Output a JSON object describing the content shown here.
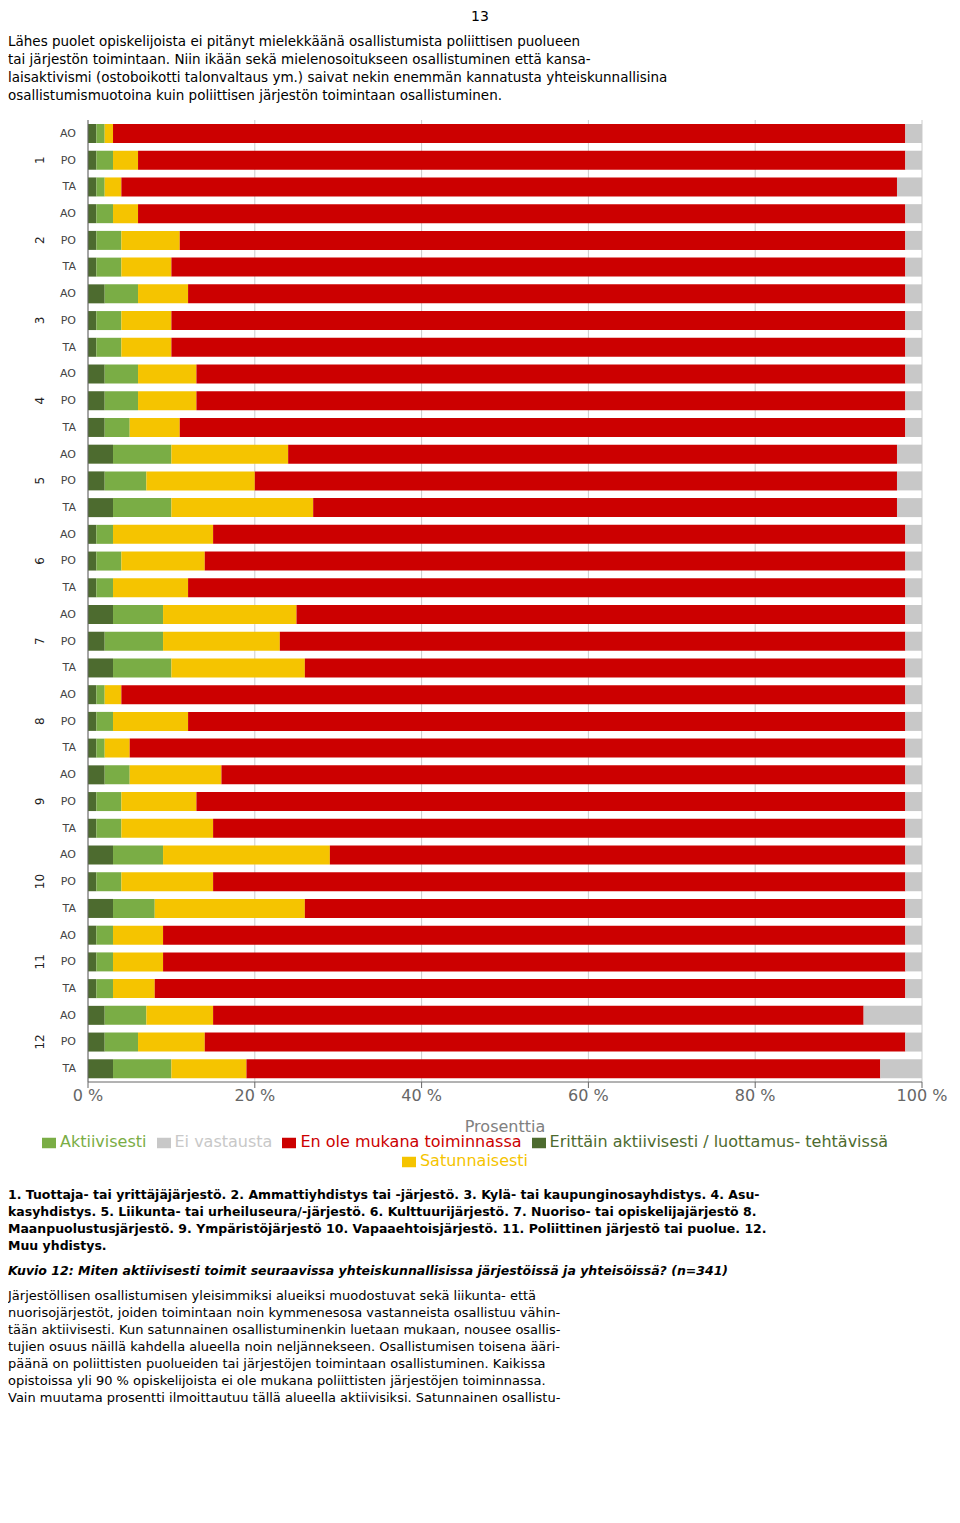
{
  "chart_data": {
    "type": "bar",
    "orientation": "horizontal",
    "stacked": true,
    "grid": true,
    "legend": "bottom",
    "title": "Kuvio 12: Miten aktiivisesti toimit seuraavissa yhteiskunnallisissa järjestöissä ja yhteisöissä? (n=341)",
    "annotations": [
      [
        "13"
      ],
      [
        "Lähes puolet opiskelijoista ei pitänyt mielekkäänä osallistumista poliittisen puolueen",
        "tai järjestön toimintaan. Niin ikään sekä mielenosoitukseen osallistuminen että kansa-",
        "laisaktivismi (ostoboikotti talonvaltaus ym.) saivat nekin enemmän kannatusta yhteiskunnallisina",
        "osallistumismuotoina kuin poliittisen järjestön toimintaan osallistuminen."
      ],
      [
        "1. Tuottaja- tai yrittäjäjärjestö. 2. Ammattiyhdistys tai -järjestö. 3. Kylä- tai kaupunginosayhdistys. 4. Asu-",
        "kasyhdistys. 5. Liikunta- tai urheiluseura/-järjestö. 6. Kulttuurijärjestö. 7. Nuoriso- tai opiskelijajärjestö 8.",
        "Maanpuolustusjärjestö. 9. Ympäristöjärjestö 10. Vapaaehtoisjärjestö. 11. Poliittinen järjestö tai puolue. 12.",
        "Muu yhdistys."
      ],
      [
        "Järjestöllisen osallistumisen yleisimmiksi alueiksi muodostuvat sekä liikunta- että",
        "nuorisojärjestöt, joiden toimintaan noin kymmenesosa vastanneista osallistuu vähin-",
        "tään aktiivisesti. Kun satunnainen osallistuminenkin luetaan mukaan, nousee osallis-",
        "tujien osuus näillä kahdella alueella noin neljännekseen. Osallistumisen toisena ääri-",
        "päänä on poliittisten puolueiden tai järjestöjen toimintaan osallistuminen. Kaikissa",
        "opistoissa yli 90 % opiskelijoista ei ole mukana poliittisten järjestöjen toiminnassa.",
        "Vain muutama prosentti ilmoittautuu tällä alueella aktiivisiksi. Satunnainen osallistu-"
      ]
    ],
    "xlabel": "Prosenttia",
    "xlim": [
      0,
      100
    ],
    "xticks": [
      {
        "value": 0,
        "label": "0 %"
      },
      {
        "value": 20,
        "label": "20 %"
      },
      {
        "value": 40,
        "label": "40 %"
      },
      {
        "value": 60,
        "label": "60 %"
      },
      {
        "value": 80,
        "label": "80 %"
      },
      {
        "value": 100,
        "label": "100 %"
      }
    ],
    "group_labels": [
      "1",
      "2",
      "3",
      "4",
      "5",
      "6",
      "7",
      "8",
      "9",
      "10",
      "11",
      "12"
    ],
    "categories": [
      "AO",
      "PO",
      "TA",
      "AO",
      "PO",
      "TA",
      "AO",
      "PO",
      "TA",
      "AO",
      "PO",
      "TA",
      "AO",
      "PO",
      "TA",
      "AO",
      "PO",
      "TA",
      "AO",
      "PO",
      "TA",
      "AO",
      "PO",
      "TA",
      "AO",
      "PO",
      "TA",
      "AO",
      "PO",
      "TA",
      "AO",
      "PO",
      "TA",
      "AO",
      "PO",
      "TA"
    ],
    "series": [
      {
        "name": "Erittäin aktiivisesti / luottamus- tehtävissä",
        "color": "#4d6b2f",
        "values": [
          1,
          1,
          1,
          1,
          1,
          1,
          2,
          1,
          1,
          2,
          2,
          2,
          3,
          2,
          3,
          1,
          1,
          1,
          3,
          2,
          3,
          1,
          1,
          1,
          2,
          1,
          1,
          3,
          1,
          3,
          1,
          1,
          1,
          2,
          2,
          3
        ]
      },
      {
        "name": "Aktiivisesti",
        "color": "#7aad45",
        "values": [
          1,
          2,
          1,
          2,
          3,
          3,
          4,
          3,
          3,
          4,
          4,
          3,
          7,
          5,
          7,
          2,
          3,
          2,
          6,
          7,
          7,
          1,
          2,
          1,
          3,
          3,
          3,
          6,
          3,
          5,
          2,
          2,
          2,
          5,
          4,
          7
        ]
      },
      {
        "name": "Satunnaisesti",
        "color": "#f5c400",
        "values": [
          1,
          3,
          2,
          3,
          7,
          6,
          6,
          6,
          6,
          7,
          7,
          6,
          14,
          13,
          17,
          12,
          10,
          9,
          16,
          14,
          16,
          2,
          9,
          3,
          11,
          9,
          11,
          20,
          11,
          18,
          6,
          6,
          5,
          8,
          8,
          9
        ]
      },
      {
        "name": "En ole mukana toiminnassa",
        "color": "#cc0000",
        "values": [
          95,
          92,
          93,
          92,
          87,
          88,
          86,
          88,
          88,
          85,
          85,
          87,
          73,
          77,
          70,
          83,
          84,
          86,
          73,
          75,
          72,
          94,
          86,
          93,
          82,
          85,
          83,
          69,
          83,
          72,
          89,
          89,
          90,
          78,
          84,
          76
        ]
      },
      {
        "name": "Ei vastausta",
        "color": "#c8c8c8",
        "values": [
          2,
          2,
          3,
          2,
          2,
          2,
          2,
          2,
          2,
          2,
          2,
          2,
          3,
          3,
          3,
          2,
          2,
          2,
          2,
          2,
          2,
          2,
          2,
          2,
          2,
          2,
          2,
          2,
          2,
          2,
          2,
          2,
          2,
          7,
          2,
          5
        ]
      }
    ]
  }
}
